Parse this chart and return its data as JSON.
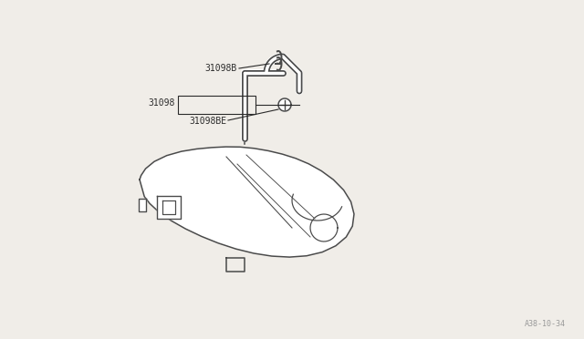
{
  "bg_color": "#f0ede8",
  "line_color": "#4a4a4a",
  "text_color": "#2a2a2a",
  "footer_text": "A38-10-34",
  "figsize": [
    6.4,
    3.72
  ],
  "dpi": 100
}
